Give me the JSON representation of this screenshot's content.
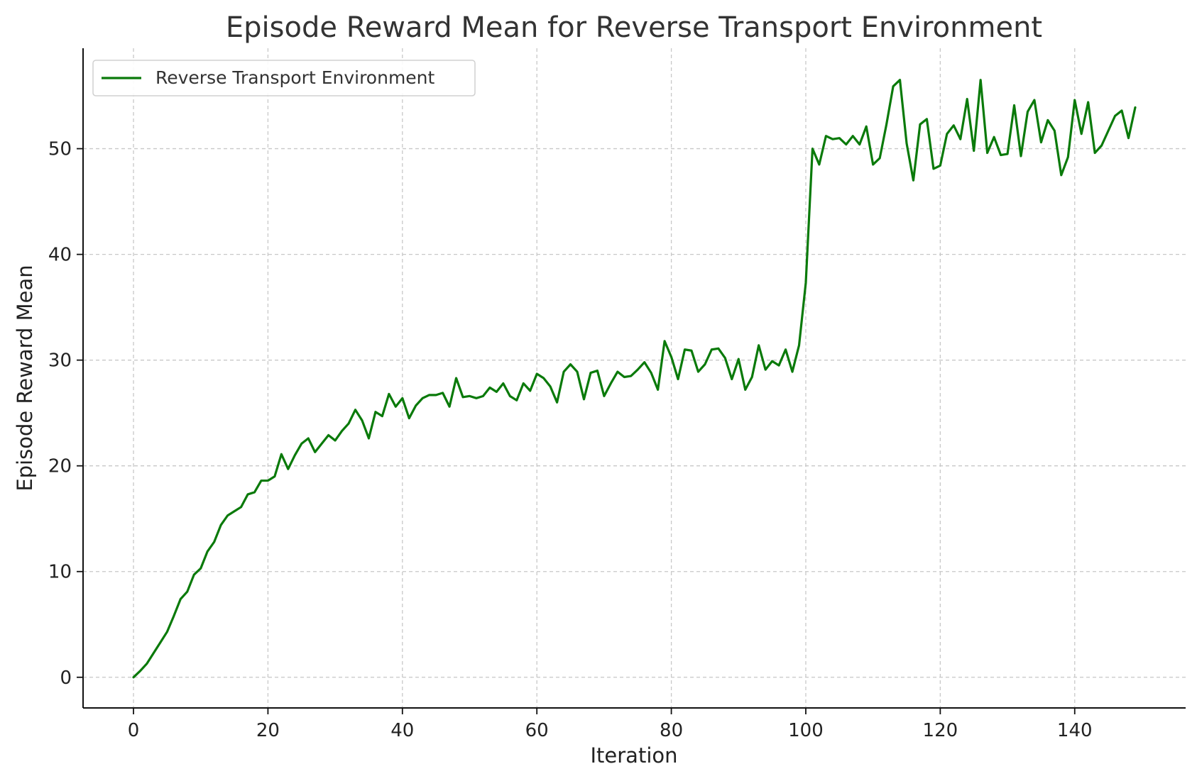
{
  "chart_data": {
    "type": "line",
    "title": "Episode Reward Mean for Reverse Transport Environment",
    "xlabel": "Iteration",
    "ylabel": "Episode Reward Mean",
    "xlim": [
      -7.5,
      156.5
    ],
    "ylim": [
      -2.9,
      59.5
    ],
    "xticks": [
      0,
      20,
      40,
      60,
      80,
      100,
      120,
      140
    ],
    "yticks": [
      0,
      10,
      20,
      30,
      40,
      50
    ],
    "grid": true,
    "legend_position": "top-left",
    "series": [
      {
        "name": "Reverse Transport Environment",
        "color": "#0a7a0a",
        "x": [
          0,
          1,
          2,
          3,
          4,
          5,
          6,
          7,
          8,
          9,
          10,
          11,
          12,
          13,
          14,
          15,
          16,
          17,
          18,
          19,
          20,
          21,
          22,
          23,
          24,
          25,
          26,
          27,
          28,
          29,
          30,
          31,
          32,
          33,
          34,
          35,
          36,
          37,
          38,
          39,
          40,
          41,
          42,
          43,
          44,
          45,
          46,
          47,
          48,
          49,
          50,
          51,
          52,
          53,
          54,
          55,
          56,
          57,
          58,
          59,
          60,
          61,
          62,
          63,
          64,
          65,
          66,
          67,
          68,
          69,
          70,
          71,
          72,
          73,
          74,
          75,
          76,
          77,
          78,
          79,
          80,
          81,
          82,
          83,
          84,
          85,
          86,
          87,
          88,
          89,
          90,
          91,
          92,
          93,
          94,
          95,
          96,
          97,
          98,
          99,
          100,
          101,
          102,
          103,
          104,
          105,
          106,
          107,
          108,
          109,
          110,
          111,
          112,
          113,
          114,
          115,
          116,
          117,
          118,
          119,
          120,
          121,
          122,
          123,
          124,
          125,
          126,
          127,
          128,
          129,
          130,
          131,
          132,
          133,
          134,
          135,
          136,
          137,
          138,
          139,
          140,
          141,
          142,
          143,
          144,
          145,
          146,
          147,
          148,
          149
        ],
        "values": [
          0.0,
          0.6,
          1.3,
          2.3,
          3.3,
          4.3,
          5.8,
          7.4,
          8.1,
          9.7,
          10.3,
          11.9,
          12.8,
          14.4,
          15.3,
          15.7,
          16.1,
          17.3,
          17.5,
          18.6,
          18.6,
          19.0,
          21.1,
          19.7,
          21.0,
          22.1,
          22.6,
          21.3,
          22.1,
          22.9,
          22.4,
          23.3,
          24.0,
          25.3,
          24.3,
          22.6,
          25.1,
          24.7,
          26.8,
          25.6,
          26.4,
          24.5,
          25.7,
          26.4,
          26.7,
          26.7,
          26.9,
          25.6,
          28.3,
          26.5,
          26.6,
          26.4,
          26.6,
          27.4,
          27.0,
          27.8,
          26.6,
          26.2,
          27.8,
          27.1,
          28.7,
          28.3,
          27.5,
          26.0,
          28.9,
          29.6,
          28.9,
          26.3,
          28.8,
          29.0,
          26.6,
          27.8,
          28.9,
          28.4,
          28.5,
          29.1,
          29.8,
          28.8,
          27.2,
          31.8,
          30.3,
          28.2,
          31.0,
          30.9,
          28.9,
          29.6,
          31.0,
          31.1,
          30.2,
          28.2,
          30.1,
          27.2,
          28.4,
          31.4,
          29.1,
          29.9,
          29.5,
          31.0,
          28.9,
          31.4,
          37.3,
          50.0,
          48.5,
          51.2,
          50.9,
          51.0,
          50.4,
          51.2,
          50.4,
          52.1,
          48.5,
          49.1,
          52.3,
          55.9,
          56.5,
          50.5,
          47.0,
          52.3,
          52.8,
          48.1,
          48.4,
          51.4,
          52.2,
          50.9,
          54.7,
          49.8,
          56.5,
          49.6,
          51.1,
          49.4,
          49.5,
          54.1,
          49.3,
          53.5,
          54.6,
          50.6,
          52.7,
          51.7,
          47.5,
          49.2,
          54.6,
          51.4,
          54.4,
          49.6,
          50.3,
          51.7,
          53.1,
          53.6,
          51.0,
          53.9
        ]
      }
    ]
  }
}
